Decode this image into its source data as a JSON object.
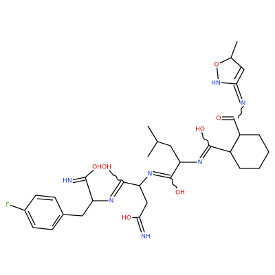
{
  "atoms": [
    {
      "label": "O"
    },
    {
      "label": "HN"
    },
    {
      "label": "N"
    },
    {
      "label": "O"
    },
    {
      "label": "HO"
    },
    {
      "label": "N"
    },
    {
      "label": "OH"
    },
    {
      "label": "N"
    },
    {
      "label": "OH"
    },
    {
      "label": "HO"
    },
    {
      "label": "NH"
    },
    {
      "label": "N"
    },
    {
      "label": "OH"
    },
    {
      "label": "HN"
    },
    {
      "label": "F"
    }
  ]
}
